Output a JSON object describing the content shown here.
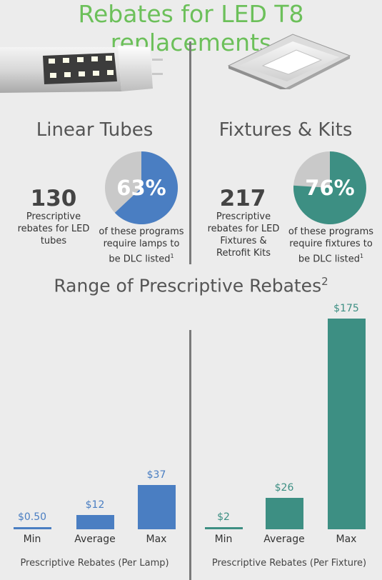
{
  "title": "Rebates for LED T8 replacements",
  "left_panel": {
    "heading": "Linear Tubes",
    "count": "130",
    "count_desc": [
      "Prescriptive",
      "rebates for LED",
      "tubes"
    ],
    "pct": 63,
    "pct_label": "63%",
    "pct_desc": [
      "of these programs",
      "require lamps to",
      "be DLC listed"
    ],
    "footnote": "1"
  },
  "right_panel": {
    "heading": "Fixtures & Kits",
    "count": "217",
    "count_desc": [
      "Prescriptive",
      "rebates for LED",
      "Fixtures &",
      "Retrofit Kits"
    ],
    "pct": 76,
    "pct_label": "76%",
    "pct_desc": [
      "of these programs",
      "require fixtures to",
      "be DLC listed"
    ],
    "footnote": "1"
  },
  "range_title": "Range of Prescriptive Rebates",
  "range_footnote": "2",
  "colors": {
    "title_green": "#6cc05a",
    "blue": "#4a7ec2",
    "teal": "#3d8f83",
    "pie_gray": "#c9c9c9",
    "divider": "#7a7a7a"
  },
  "chart_data": [
    {
      "type": "bar",
      "categories": [
        "Min",
        "Average",
        "Max"
      ],
      "values": [
        0.5,
        12,
        37
      ],
      "value_labels": [
        "$0.50",
        "$12",
        "$37"
      ],
      "xlabel": "Prescriptive Rebates (Per Lamp)",
      "ylim": [
        0,
        175
      ]
    },
    {
      "type": "bar",
      "categories": [
        "Min",
        "Average",
        "Max"
      ],
      "values": [
        2,
        26,
        175
      ],
      "value_labels": [
        "$2",
        "$26",
        "$175"
      ],
      "xlabel": "Prescriptive Rebates (Per Fixture)",
      "ylim": [
        0,
        175
      ]
    }
  ]
}
